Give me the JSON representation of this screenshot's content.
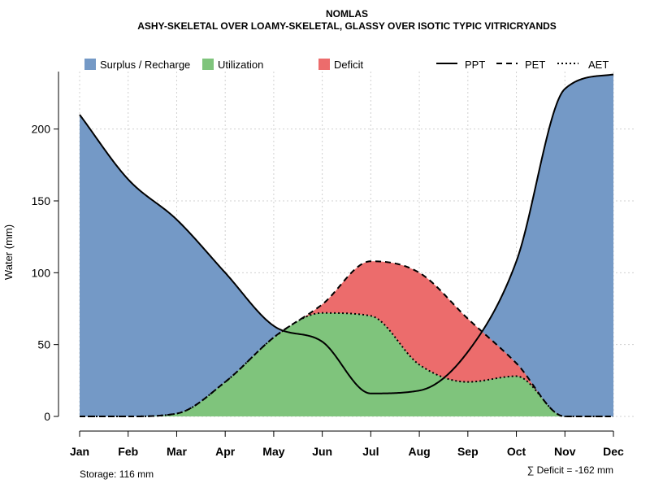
{
  "chart_data": {
    "type": "area",
    "title": "NOMLAS",
    "subtitle": "ASHY-SKELETAL OVER LOAMY-SKELETAL, GLASSY OVER ISOTIC TYPIC VITRICRYANDS",
    "ylabel": "Water (mm)",
    "xlabel": "",
    "ylim": [
      0,
      240
    ],
    "yticks": [
      0,
      50,
      100,
      150,
      200
    ],
    "categories": [
      "Jan",
      "Feb",
      "Mar",
      "Apr",
      "May",
      "Jun",
      "Jul",
      "Aug",
      "Sep",
      "Oct",
      "Nov",
      "Dec"
    ],
    "grid": true,
    "series": [
      {
        "name": "PPT",
        "style": "solid",
        "values": [
          210,
          165,
          137,
          100,
          63,
          52,
          16,
          18,
          45,
          108,
          228,
          238
        ]
      },
      {
        "name": "PET",
        "style": "dashed",
        "values": [
          0,
          0,
          2,
          24,
          55,
          78,
          108,
          100,
          68,
          37,
          0,
          0
        ]
      },
      {
        "name": "AET",
        "style": "dotted",
        "values": [
          0,
          0,
          2,
          24,
          55,
          72,
          70,
          36,
          24,
          28,
          0,
          0
        ]
      }
    ],
    "legend": [
      {
        "label": "Surplus / Recharge",
        "color": "#7499c6"
      },
      {
        "label": "Utilization",
        "color": "#7fc47c"
      },
      {
        "label": "Deficit",
        "color": "#ec6c6c"
      },
      {
        "label": "PPT",
        "line": "solid"
      },
      {
        "label": "PET",
        "line": "dashed"
      },
      {
        "label": "AET",
        "line": "dotted"
      }
    ],
    "legend_position": "top",
    "annotations": {
      "storage": "Storage: 116 mm",
      "deficit": "∑ Deficit = -162 mm"
    },
    "colors": {
      "surplus": "#7499c6",
      "utilization": "#7fc47c",
      "deficit": "#ec6c6c"
    }
  }
}
